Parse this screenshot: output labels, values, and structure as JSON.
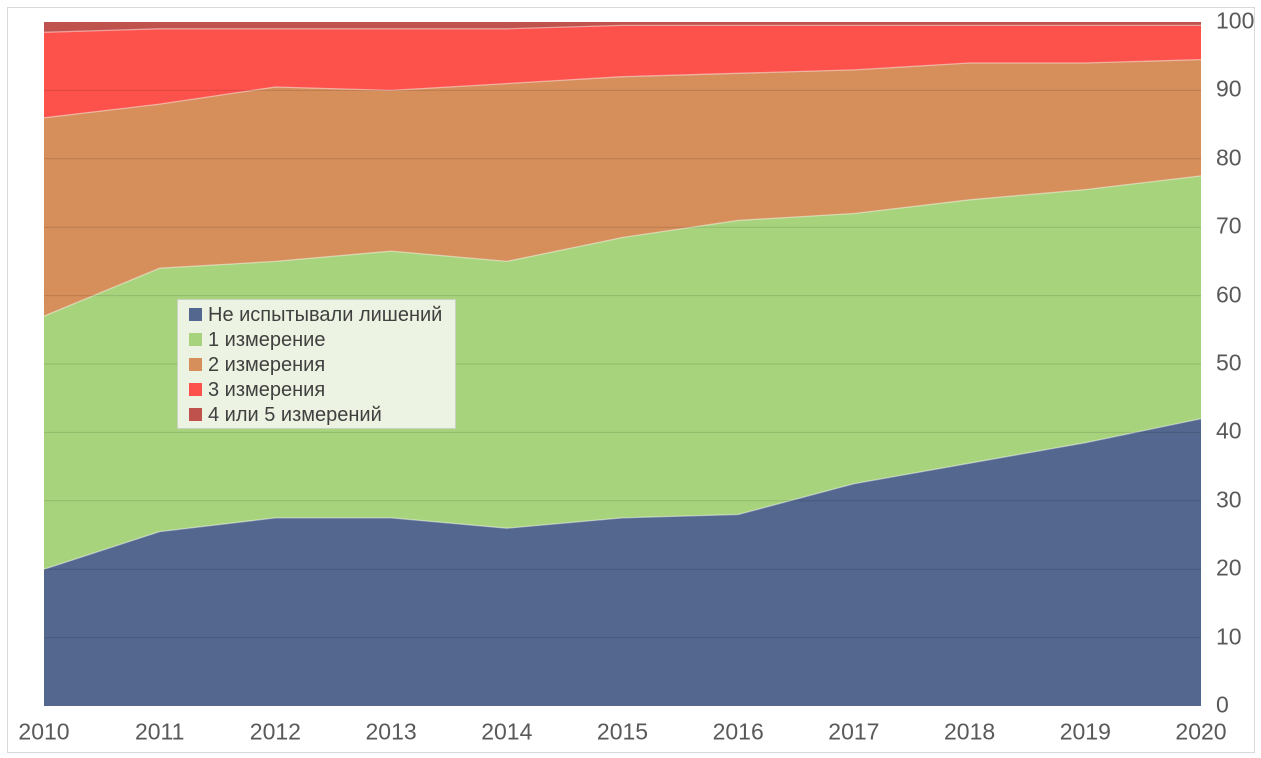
{
  "chart_data": {
    "type": "area",
    "stacked": true,
    "stack_total": 100,
    "x": [
      2010,
      2011,
      2012,
      2013,
      2014,
      2015,
      2016,
      2017,
      2018,
      2019,
      2020
    ],
    "series": [
      {
        "name": "Не испытывали лишений",
        "color": "#53678F",
        "values": [
          20,
          25.5,
          27.5,
          27.5,
          26,
          27.5,
          28,
          32.5,
          35.5,
          38.5,
          42
        ]
      },
      {
        "name": "1 измерение",
        "color": "#A8D37D",
        "values": [
          37,
          38.5,
          37.5,
          39,
          39,
          41,
          43,
          39.5,
          38.5,
          37,
          35.5
        ]
      },
      {
        "name": "2 измерения",
        "color": "#D68E5B",
        "values": [
          29,
          24,
          25.5,
          23.5,
          26,
          23.5,
          21.5,
          21,
          20,
          18.5,
          17
        ]
      },
      {
        "name": "3 измерения",
        "color": "#FD514C",
        "values": [
          12.5,
          11,
          8.5,
          9,
          8,
          7.5,
          7,
          6.5,
          5.5,
          5.5,
          5
        ]
      },
      {
        "name": "4 или 5 измерений",
        "color": "#BF524D",
        "values": [
          1.5,
          1,
          1,
          1,
          1,
          0.5,
          0.5,
          0.5,
          0.5,
          0.5,
          0.5
        ]
      }
    ],
    "x_axis": {
      "tick_labels": [
        "2010",
        "2011",
        "2012",
        "2013",
        "2014",
        "2015",
        "2016",
        "2017",
        "2018",
        "2019",
        "2020"
      ]
    },
    "y_axis": {
      "side": "right",
      "min": 0,
      "max": 100,
      "step": 10,
      "tick_labels": [
        "0",
        "10",
        "20",
        "30",
        "40",
        "50",
        "60",
        "70",
        "80",
        "90",
        "100"
      ]
    },
    "legend": {
      "position": "left-middle",
      "items": [
        "Не испытывали лишений",
        "1 измерение",
        "2 измерения",
        "3 измерения",
        "4 или 5 измерений"
      ]
    },
    "grid": "horizontal",
    "title": "",
    "xlabel": "",
    "ylabel": ""
  },
  "style_colors": {
    "frame_border": "#d9d9d9",
    "gridline": "rgba(0,0,0,0.13)",
    "axis_text": "#595959",
    "legend_text": "#404040",
    "legend_bg": "#edf3e2",
    "legend_border": "#c9d1c0",
    "boundary_stroke": "rgba(255,255,255,0.45)"
  }
}
